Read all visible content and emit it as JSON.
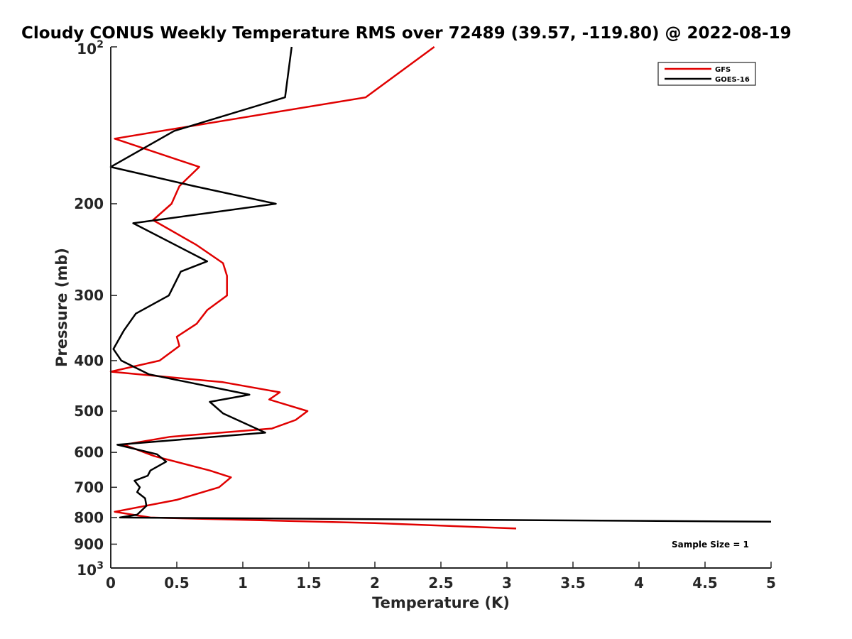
{
  "chart_data": {
    "type": "line",
    "title": "Cloudy CONUS Weekly Temperature RMS over 72489 (39.57, -119.80) @ 2022-08-19",
    "xlabel": "Temperature (K)",
    "ylabel": "Pressure (mb)",
    "xlim": [
      0,
      5
    ],
    "ylim": [
      100,
      1000
    ],
    "y_scale": "log",
    "y_reversed": true,
    "x_ticks": [
      "0",
      "0.5",
      "1",
      "1.5",
      "2",
      "2.5",
      "3",
      "3.5",
      "4",
      "4.5",
      "5"
    ],
    "x_tick_values": [
      0,
      0.5,
      1,
      1.5,
      2,
      2.5,
      3,
      3.5,
      4,
      4.5,
      5
    ],
    "y_ticks": [
      {
        "value": 100,
        "base": "10",
        "exp": "2"
      },
      {
        "value": 200,
        "label": "200"
      },
      {
        "value": 300,
        "label": "300"
      },
      {
        "value": 400,
        "label": "400"
      },
      {
        "value": 500,
        "label": "500"
      },
      {
        "value": 600,
        "label": "600"
      },
      {
        "value": 700,
        "label": "700"
      },
      {
        "value": 800,
        "label": "800"
      },
      {
        "value": 900,
        "label": "900"
      },
      {
        "value": 1000,
        "base": "10",
        "exp": "3"
      }
    ],
    "grid": false,
    "legend_position": "top-right",
    "annotation": "Sample Size = 1",
    "series": [
      {
        "name": "GFS",
        "color": "#e00000",
        "points": [
          [
            2.45,
            100
          ],
          [
            1.93,
            125
          ],
          [
            0.03,
            150
          ],
          [
            0.67,
            170
          ],
          [
            0.52,
            185
          ],
          [
            0.46,
            200
          ],
          [
            0.32,
            215
          ],
          [
            0.65,
            240
          ],
          [
            0.85,
            260
          ],
          [
            0.88,
            275
          ],
          [
            0.88,
            300
          ],
          [
            0.73,
            320
          ],
          [
            0.65,
            340
          ],
          [
            0.5,
            360
          ],
          [
            0.52,
            375
          ],
          [
            0.37,
            400
          ],
          [
            0.0,
            420
          ],
          [
            0.85,
            440
          ],
          [
            1.28,
            460
          ],
          [
            1.2,
            475
          ],
          [
            1.49,
            500
          ],
          [
            1.4,
            520
          ],
          [
            1.22,
            540
          ],
          [
            0.45,
            560
          ],
          [
            0.1,
            580
          ],
          [
            0.33,
            610
          ],
          [
            0.75,
            650
          ],
          [
            0.91,
            670
          ],
          [
            0.82,
            700
          ],
          [
            0.5,
            740
          ],
          [
            0.03,
            780
          ],
          [
            0.3,
            800
          ],
          [
            2.0,
            820
          ],
          [
            3.07,
            840
          ]
        ]
      },
      {
        "name": "GOES-16",
        "color": "#000000",
        "points": [
          [
            1.37,
            100
          ],
          [
            1.32,
            125
          ],
          [
            0.48,
            145
          ],
          [
            0.0,
            170
          ],
          [
            0.63,
            185
          ],
          [
            1.25,
            200
          ],
          [
            0.17,
            218
          ],
          [
            0.73,
            258
          ],
          [
            0.53,
            270
          ],
          [
            0.44,
            300
          ],
          [
            0.19,
            325
          ],
          [
            0.1,
            350
          ],
          [
            0.02,
            380
          ],
          [
            0.08,
            400
          ],
          [
            0.29,
            425
          ],
          [
            1.05,
            465
          ],
          [
            0.75,
            480
          ],
          [
            0.85,
            505
          ],
          [
            1.17,
            550
          ],
          [
            0.05,
            580
          ],
          [
            0.35,
            605
          ],
          [
            0.42,
            625
          ],
          [
            0.3,
            650
          ],
          [
            0.28,
            665
          ],
          [
            0.18,
            680
          ],
          [
            0.22,
            700
          ],
          [
            0.2,
            715
          ],
          [
            0.26,
            735
          ],
          [
            0.27,
            760
          ],
          [
            0.2,
            790
          ],
          [
            0.07,
            800
          ],
          [
            5.0,
            815
          ]
        ]
      }
    ]
  }
}
